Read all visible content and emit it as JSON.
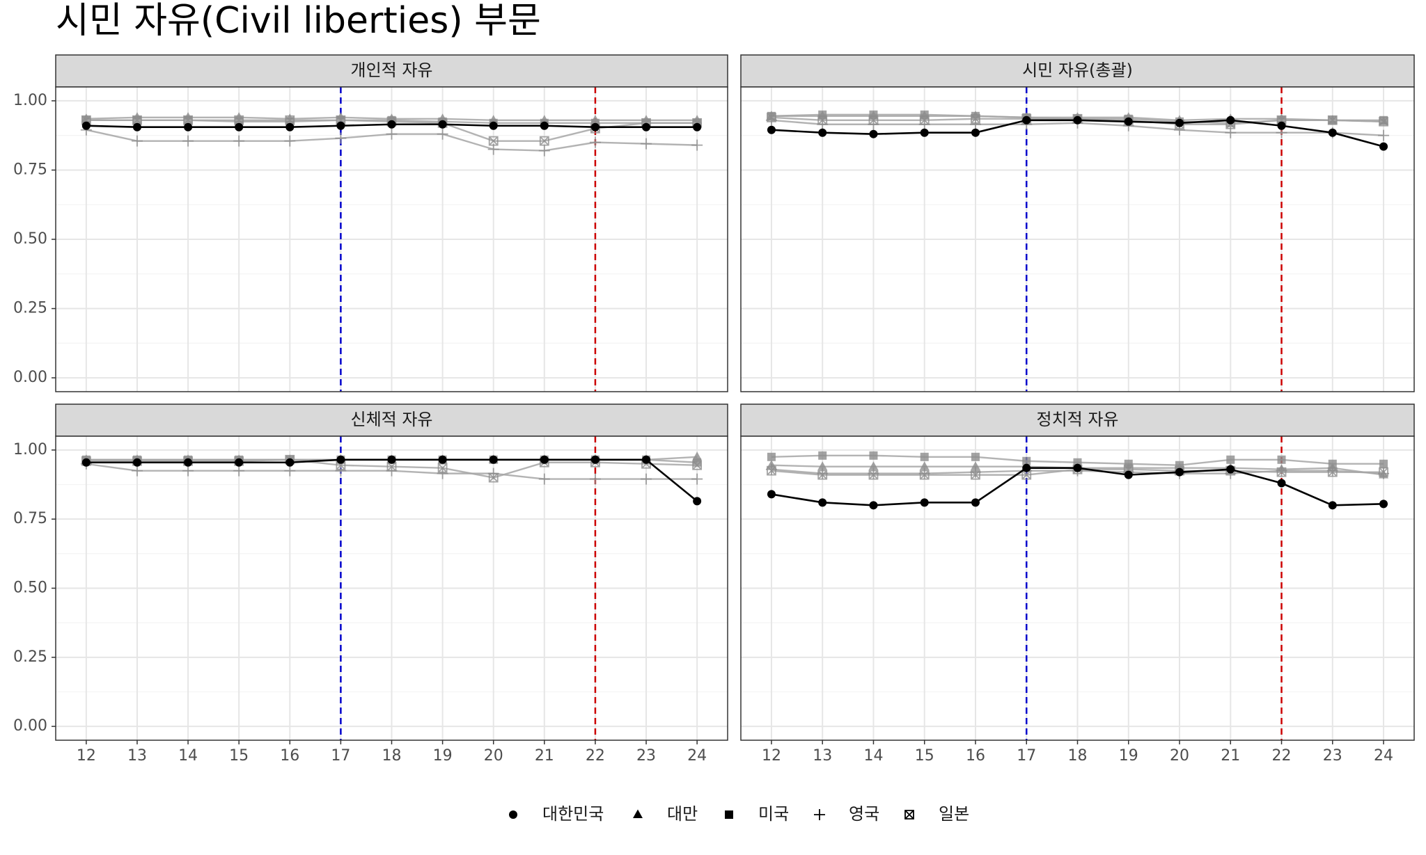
{
  "title": "시민 자유(Civil liberties) 부문",
  "chart_data": [
    {
      "type": "line",
      "title": "개인적 자유",
      "x": [
        12,
        13,
        14,
        15,
        16,
        17,
        18,
        19,
        20,
        21,
        22,
        23,
        24
      ],
      "xlim": [
        11.4,
        24.6
      ],
      "xticks": [
        12,
        13,
        14,
        15,
        16,
        17,
        18,
        19,
        20,
        21,
        22,
        23,
        24
      ],
      "ylim": [
        -0.05,
        1.05
      ],
      "yticks": [
        {
          "value": 0,
          "label": "0.00"
        },
        {
          "value": 0.25,
          "label": "0.25"
        },
        {
          "value": 0.5,
          "label": "0.50"
        },
        {
          "value": 0.75,
          "label": "0.75"
        },
        {
          "value": 1,
          "label": "1.00"
        }
      ],
      "y_minor_ticks": [
        0.125,
        0.375,
        0.625,
        0.875
      ],
      "grid": true,
      "vlines": [
        {
          "x": 17,
          "color": "#0000cc"
        },
        {
          "x": 22,
          "color": "#cc0000"
        }
      ],
      "series": [
        {
          "name": "대한민국",
          "color": "#000000",
          "marker": "circle",
          "values": [
            0.91,
            0.905,
            0.905,
            0.905,
            0.905,
            0.91,
            0.915,
            0.915,
            0.91,
            0.91,
            0.905,
            0.905,
            0.905
          ]
        },
        {
          "name": "대만",
          "color": "#a6a6a6",
          "marker": "triangle",
          "values": [
            0.935,
            0.94,
            0.94,
            0.94,
            0.935,
            0.94,
            0.935,
            0.935,
            0.93,
            0.93,
            0.93,
            0.93,
            0.93
          ]
        },
        {
          "name": "미국",
          "color": "#a6a6a6",
          "marker": "square",
          "values": [
            0.93,
            0.93,
            0.93,
            0.925,
            0.925,
            0.93,
            0.93,
            0.925,
            0.92,
            0.92,
            0.92,
            0.92,
            0.92
          ]
        },
        {
          "name": "영국",
          "color": "#a6a6a6",
          "marker": "plus",
          "values": [
            0.895,
            0.855,
            0.855,
            0.855,
            0.855,
            0.865,
            0.88,
            0.88,
            0.825,
            0.82,
            0.85,
            0.845,
            0.84
          ]
        },
        {
          "name": "일본",
          "color": "#a6a6a6",
          "marker": "boxx",
          "values": [
            0.93,
            0.93,
            0.93,
            0.93,
            0.93,
            0.93,
            0.925,
            0.92,
            0.855,
            0.855,
            0.9,
            0.92,
            0.92
          ]
        }
      ]
    },
    {
      "type": "line",
      "title": "시민 자유(총괄)",
      "x": [
        12,
        13,
        14,
        15,
        16,
        17,
        18,
        19,
        20,
        21,
        22,
        23,
        24
      ],
      "xlim": [
        11.4,
        24.6
      ],
      "xticks": [
        12,
        13,
        14,
        15,
        16,
        17,
        18,
        19,
        20,
        21,
        22,
        23,
        24
      ],
      "ylim": [
        -0.05,
        1.05
      ],
      "yticks": [
        {
          "value": 0,
          "label": "0.00"
        },
        {
          "value": 0.25,
          "label": "0.25"
        },
        {
          "value": 0.5,
          "label": "0.50"
        },
        {
          "value": 0.75,
          "label": "0.75"
        },
        {
          "value": 1,
          "label": "1.00"
        }
      ],
      "y_minor_ticks": [
        0.125,
        0.375,
        0.625,
        0.875
      ],
      "grid": true,
      "vlines": [
        {
          "x": 17,
          "color": "#0000cc"
        },
        {
          "x": 22,
          "color": "#cc0000"
        }
      ],
      "series": [
        {
          "name": "대한민국",
          "color": "#000000",
          "marker": "circle",
          "values": [
            0.895,
            0.885,
            0.88,
            0.885,
            0.885,
            0.93,
            0.93,
            0.925,
            0.92,
            0.93,
            0.91,
            0.885,
            0.835
          ]
        },
        {
          "name": "대만",
          "color": "#a6a6a6",
          "marker": "triangle",
          "values": [
            0.945,
            0.945,
            0.945,
            0.945,
            0.945,
            0.94,
            0.94,
            0.94,
            0.93,
            0.935,
            0.935,
            0.93,
            0.925
          ]
        },
        {
          "name": "미국",
          "color": "#a6a6a6",
          "marker": "square",
          "values": [
            0.945,
            0.95,
            0.95,
            0.95,
            0.945,
            0.94,
            0.935,
            0.935,
            0.925,
            0.92,
            0.93,
            0.93,
            0.93
          ]
        },
        {
          "name": "영국",
          "color": "#a6a6a6",
          "marker": "plus",
          "values": [
            0.93,
            0.915,
            0.915,
            0.915,
            0.915,
            0.915,
            0.92,
            0.91,
            0.895,
            0.885,
            0.885,
            0.885,
            0.875
          ]
        },
        {
          "name": "일본",
          "color": "#a6a6a6",
          "marker": "boxx",
          "values": [
            0.94,
            0.93,
            0.93,
            0.93,
            0.935,
            0.935,
            0.935,
            0.93,
            0.915,
            0.915,
            0.93,
            0.93,
            0.925
          ]
        }
      ]
    },
    {
      "type": "line",
      "title": "신체적 자유",
      "x": [
        12,
        13,
        14,
        15,
        16,
        17,
        18,
        19,
        20,
        21,
        22,
        23,
        24
      ],
      "xlim": [
        11.4,
        24.6
      ],
      "xticks": [
        12,
        13,
        14,
        15,
        16,
        17,
        18,
        19,
        20,
        21,
        22,
        23,
        24
      ],
      "ylim": [
        -0.05,
        1.05
      ],
      "yticks": [
        {
          "value": 0,
          "label": "0.00"
        },
        {
          "value": 0.25,
          "label": "0.25"
        },
        {
          "value": 0.5,
          "label": "0.50"
        },
        {
          "value": 0.75,
          "label": "0.75"
        },
        {
          "value": 1,
          "label": "1.00"
        }
      ],
      "y_minor_ticks": [
        0.125,
        0.375,
        0.625,
        0.875
      ],
      "grid": true,
      "vlines": [
        {
          "x": 17,
          "color": "#0000cc"
        },
        {
          "x": 22,
          "color": "#cc0000"
        }
      ],
      "series": [
        {
          "name": "대한민국",
          "color": "#000000",
          "marker": "circle",
          "values": [
            0.955,
            0.955,
            0.955,
            0.955,
            0.955,
            0.965,
            0.965,
            0.965,
            0.965,
            0.965,
            0.965,
            0.965,
            0.815
          ]
        },
        {
          "name": "대만",
          "color": "#a6a6a6",
          "marker": "triangle",
          "values": [
            0.965,
            0.965,
            0.965,
            0.965,
            0.965,
            0.965,
            0.965,
            0.965,
            0.965,
            0.965,
            0.965,
            0.965,
            0.975
          ]
        },
        {
          "name": "미국",
          "color": "#a6a6a6",
          "marker": "square",
          "values": [
            0.965,
            0.965,
            0.965,
            0.965,
            0.965,
            0.965,
            0.965,
            0.965,
            0.965,
            0.965,
            0.965,
            0.965,
            0.955
          ]
        },
        {
          "name": "영국",
          "color": "#a6a6a6",
          "marker": "plus",
          "values": [
            0.95,
            0.925,
            0.925,
            0.925,
            0.925,
            0.925,
            0.925,
            0.915,
            0.915,
            0.895,
            0.895,
            0.895,
            0.895
          ]
        },
        {
          "name": "일본",
          "color": "#a6a6a6",
          "marker": "boxx",
          "values": [
            0.96,
            0.96,
            0.96,
            0.96,
            0.965,
            0.945,
            0.94,
            0.935,
            0.9,
            0.955,
            0.955,
            0.95,
            0.945
          ]
        }
      ]
    },
    {
      "type": "line",
      "title": "정치적 자유",
      "x": [
        12,
        13,
        14,
        15,
        16,
        17,
        18,
        19,
        20,
        21,
        22,
        23,
        24
      ],
      "xlim": [
        11.4,
        24.6
      ],
      "xticks": [
        12,
        13,
        14,
        15,
        16,
        17,
        18,
        19,
        20,
        21,
        22,
        23,
        24
      ],
      "ylim": [
        -0.05,
        1.05
      ],
      "yticks": [
        {
          "value": 0,
          "label": "0.00"
        },
        {
          "value": 0.25,
          "label": "0.25"
        },
        {
          "value": 0.5,
          "label": "0.50"
        },
        {
          "value": 0.75,
          "label": "0.75"
        },
        {
          "value": 1,
          "label": "1.00"
        }
      ],
      "y_minor_ticks": [
        0.125,
        0.375,
        0.625,
        0.875
      ],
      "grid": true,
      "vlines": [
        {
          "x": 17,
          "color": "#0000cc"
        },
        {
          "x": 22,
          "color": "#cc0000"
        }
      ],
      "series": [
        {
          "name": "대한민국",
          "color": "#000000",
          "marker": "circle",
          "values": [
            0.84,
            0.81,
            0.8,
            0.81,
            0.81,
            0.935,
            0.935,
            0.91,
            0.92,
            0.93,
            0.88,
            0.8,
            0.805
          ]
        },
        {
          "name": "대만",
          "color": "#a6a6a6",
          "marker": "triangle",
          "values": [
            0.945,
            0.94,
            0.94,
            0.94,
            0.94,
            0.94,
            0.935,
            0.935,
            0.935,
            0.935,
            0.93,
            0.935,
            0.91
          ]
        },
        {
          "name": "미국",
          "color": "#a6a6a6",
          "marker": "square",
          "values": [
            0.975,
            0.98,
            0.98,
            0.975,
            0.975,
            0.96,
            0.955,
            0.95,
            0.945,
            0.965,
            0.965,
            0.95,
            0.95
          ]
        },
        {
          "name": "영국",
          "color": "#a6a6a6",
          "marker": "plus",
          "values": [
            0.93,
            0.915,
            0.915,
            0.915,
            0.92,
            0.925,
            0.925,
            0.92,
            0.915,
            0.915,
            0.925,
            0.925,
            0.915
          ]
        },
        {
          "name": "일본",
          "color": "#a6a6a6",
          "marker": "boxx",
          "values": [
            0.925,
            0.91,
            0.91,
            0.91,
            0.91,
            0.91,
            0.93,
            0.93,
            0.925,
            0.925,
            0.92,
            0.92,
            0.92
          ]
        }
      ]
    }
  ]
}
